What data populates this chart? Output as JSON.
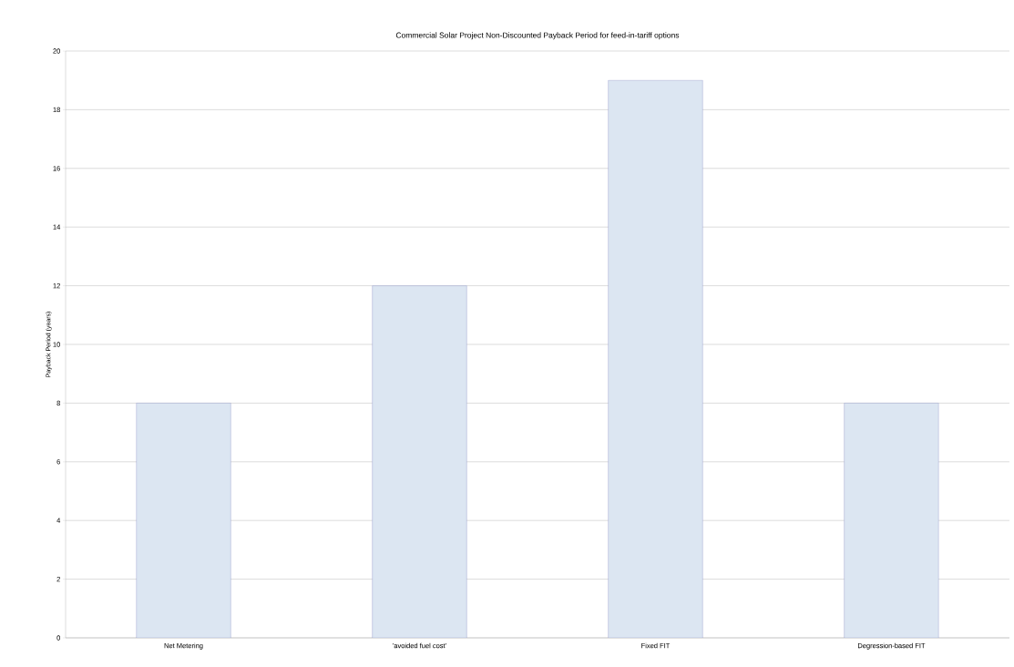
{
  "chart_data": {
    "type": "bar",
    "title": "Commercial Solar Project Non-Discounted Payback Period for feed-in-tariff options",
    "ylabel": "Payback Period (years)",
    "categories": [
      "Net Metering",
      "'avoided fuel cost'",
      "Fixed FIT",
      "Degression-based FIT"
    ],
    "values": [
      8,
      12,
      19,
      8
    ],
    "color": "#dce6f2",
    "ylim": [
      0,
      20
    ],
    "yticks": [
      0,
      2,
      4,
      6,
      8,
      10,
      12,
      14,
      16,
      18,
      20
    ],
    "grid": "y"
  }
}
